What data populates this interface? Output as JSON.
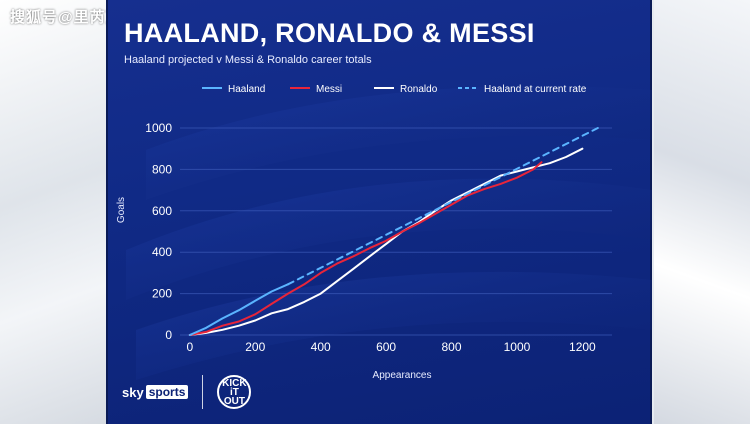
{
  "watermark": "搜狐号@里芮芃体育",
  "brand": {
    "sky_prefix": "sky",
    "sky_box": "sports",
    "kio_line1": "KICK",
    "kio_line2": "iT",
    "kio_line3": "OUT"
  },
  "colors": {
    "haaland": "#5ab4ff",
    "messi": "#e8253a",
    "ronaldo": "#ffffff",
    "haaland_rate": "#5ab4ff",
    "panel": "#122c8a",
    "grid": "#3c5ab8"
  },
  "chart_data": {
    "type": "line",
    "title": "HAALAND, RONALDO & MESSI",
    "subtitle": "Haaland projected v Messi & Ronaldo career totals",
    "xlabel": "Appearances",
    "ylabel": "Goals",
    "xlim": [
      -30,
      1260
    ],
    "ylim": [
      0,
      1000
    ],
    "xticks": [
      0,
      200,
      400,
      600,
      800,
      1000,
      1200
    ],
    "yticks": [
      0,
      200,
      400,
      600,
      800,
      1000
    ],
    "grid": true,
    "legend_position": "top",
    "series": [
      {
        "name": "Haaland",
        "style": "solid",
        "x": [
          0,
          50,
          100,
          150,
          200,
          250,
          300
        ],
        "y": [
          0,
          35,
          80,
          120,
          165,
          210,
          245
        ]
      },
      {
        "name": "Messi",
        "style": "solid",
        "x": [
          0,
          50,
          100,
          150,
          200,
          250,
          300,
          350,
          400,
          450,
          500,
          550,
          600,
          650,
          700,
          750,
          800,
          850,
          900,
          950,
          1000,
          1050,
          1075
        ],
        "y": [
          0,
          15,
          45,
          65,
          100,
          150,
          200,
          245,
          300,
          345,
          380,
          420,
          455,
          500,
          540,
          585,
          630,
          675,
          705,
          730,
          760,
          800,
          835
        ]
      },
      {
        "name": "Ronaldo",
        "style": "solid",
        "x": [
          0,
          50,
          100,
          150,
          200,
          250,
          300,
          350,
          400,
          450,
          500,
          550,
          600,
          650,
          700,
          750,
          800,
          850,
          900,
          950,
          1000,
          1050,
          1100,
          1150,
          1200
        ],
        "y": [
          0,
          10,
          25,
          45,
          70,
          105,
          125,
          160,
          200,
          260,
          320,
          380,
          440,
          500,
          545,
          600,
          650,
          690,
          730,
          770,
          790,
          810,
          830,
          860,
          900
        ]
      },
      {
        "name": "Haaland at current rate",
        "style": "dashed",
        "x": [
          300,
          1260
        ],
        "y": [
          245,
          1010
        ]
      }
    ]
  }
}
